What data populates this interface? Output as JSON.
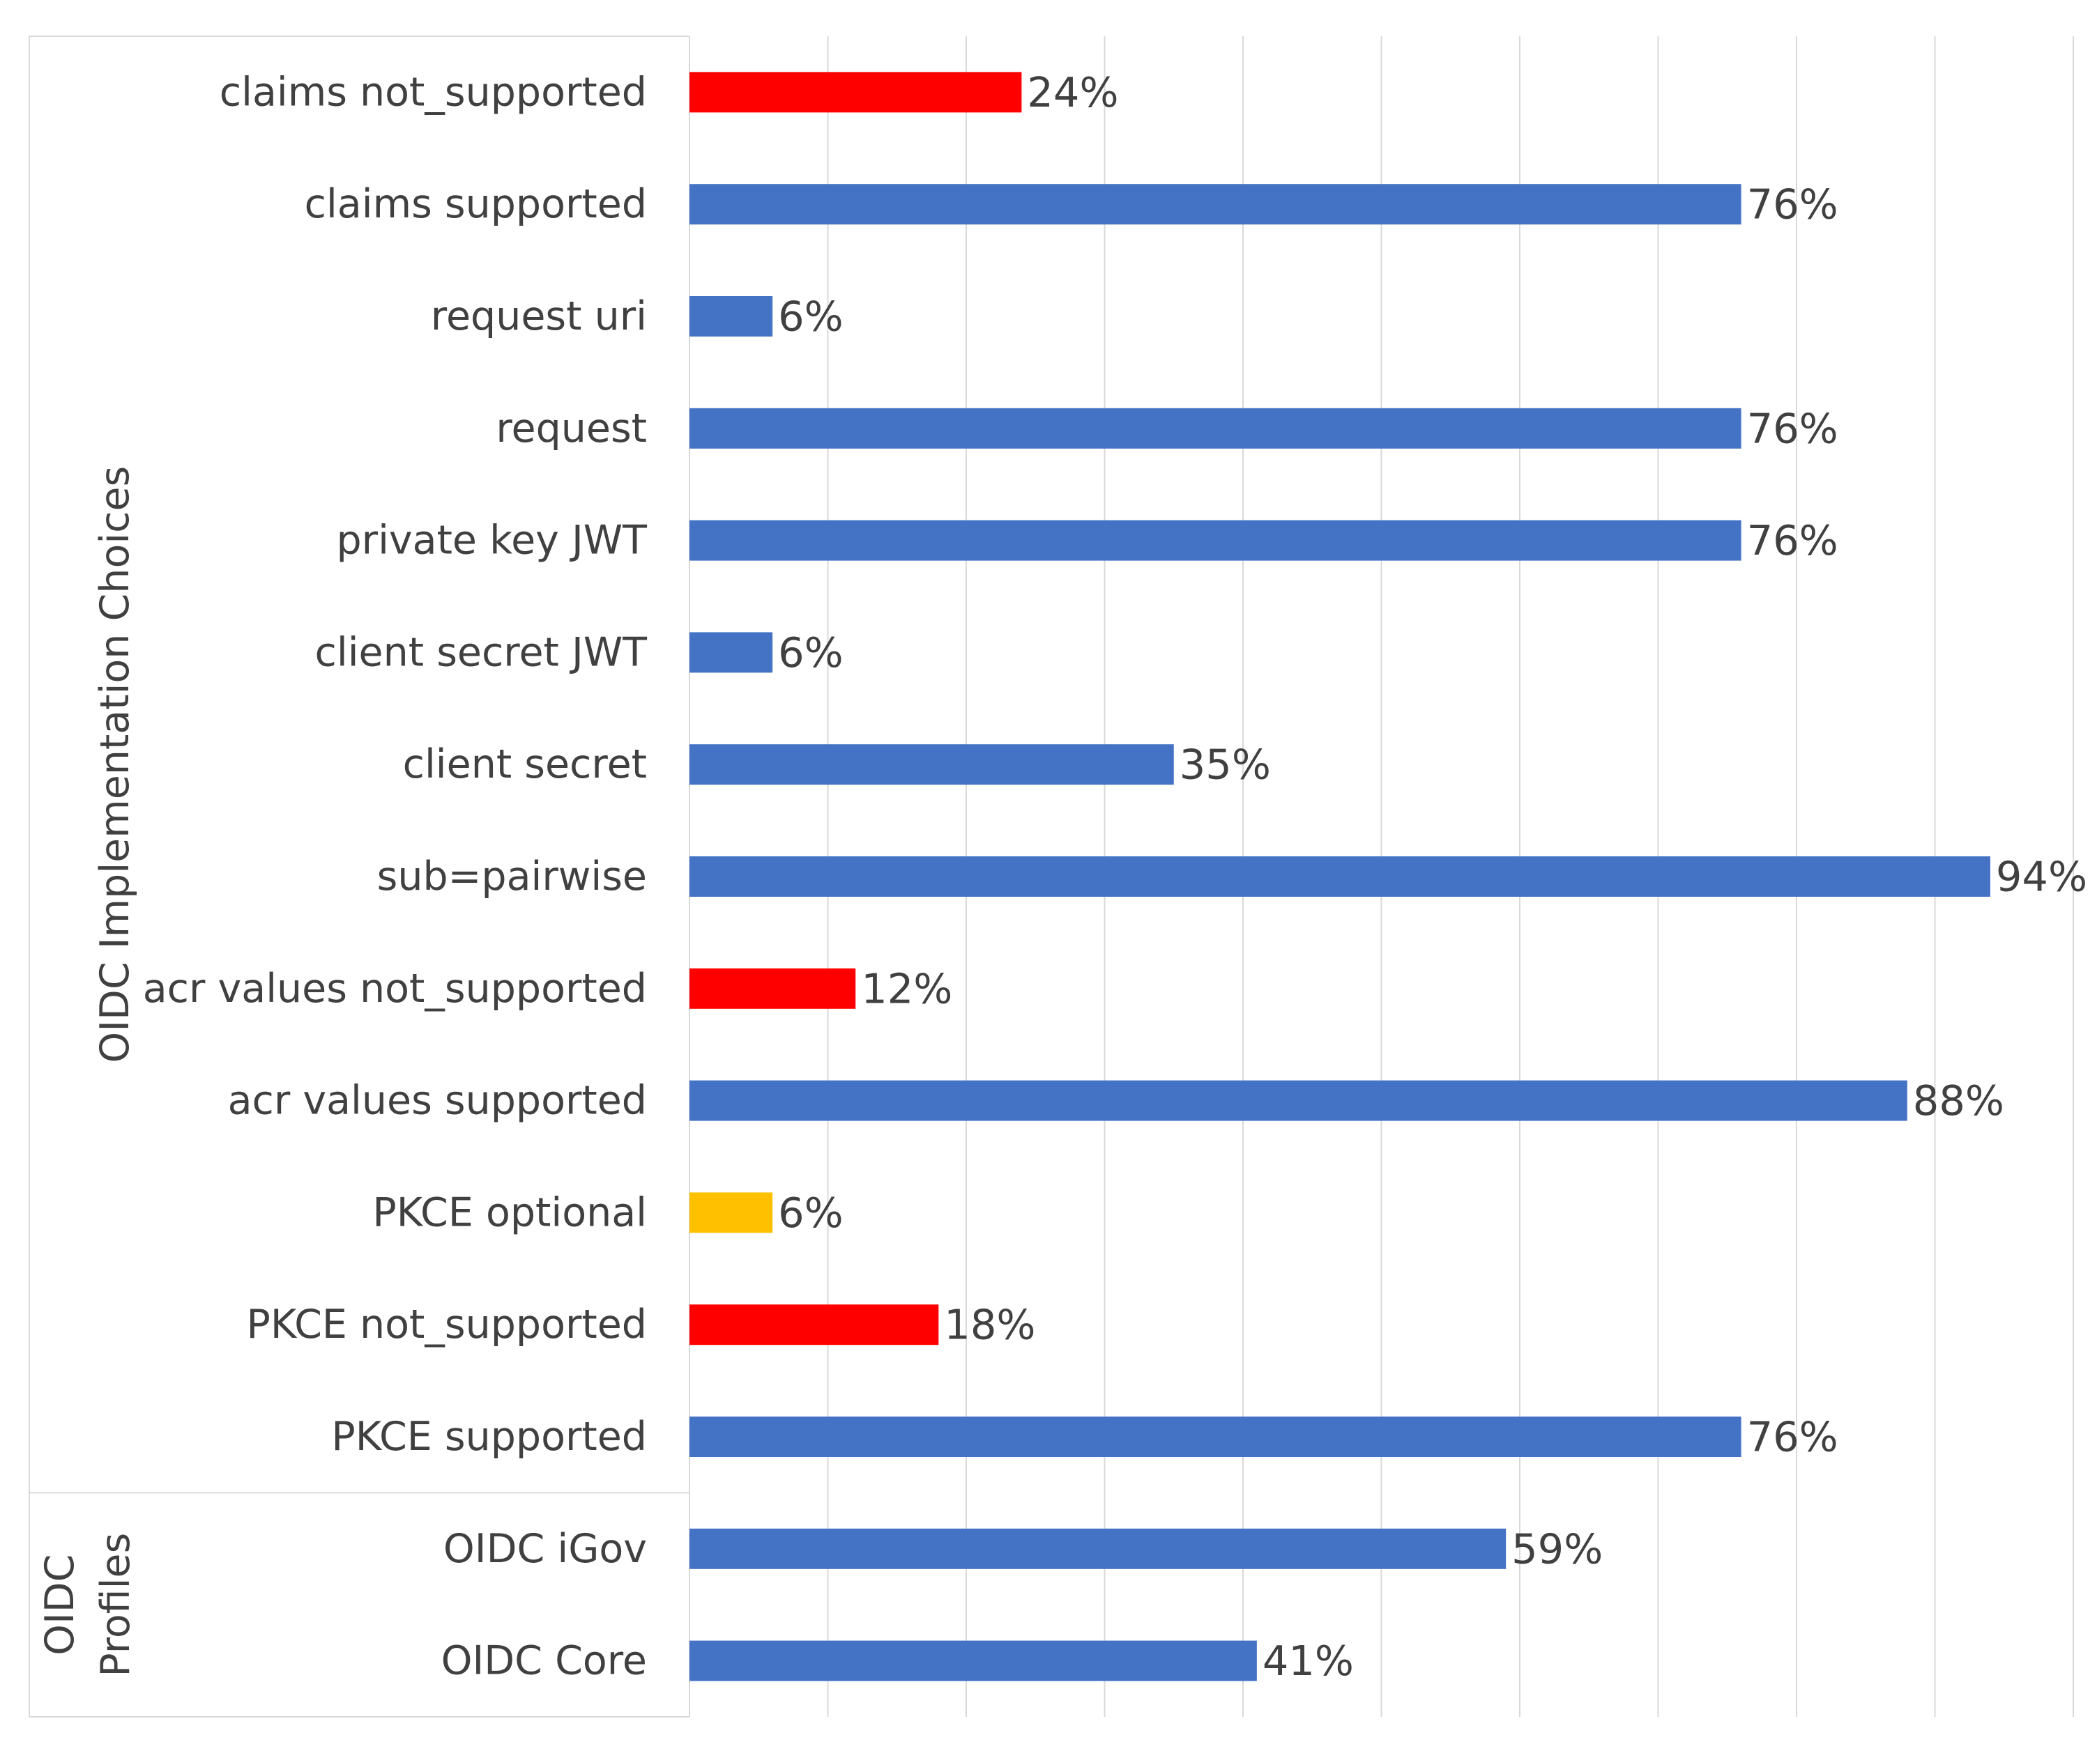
{
  "chart_data": {
    "type": "bar",
    "orientation": "horizontal",
    "title": "",
    "xlabel": "",
    "ylabel": "",
    "xlim": [
      0,
      100
    ],
    "grid": true,
    "legend": "none",
    "groups": [
      {
        "name": "OIDC Implementation Choices",
        "categories": [
          "claims not_supported",
          "claims supported",
          "request uri",
          "request",
          "private key JWT",
          "client secret JWT",
          "client secret",
          "sub=pairwise",
          "acr values not_supported",
          "acr values supported",
          "PKCE optional",
          "PKCE not_supported",
          "PKCE supported"
        ]
      },
      {
        "name": "OIDC\nProfiles",
        "name_lines": [
          "OIDC",
          "Profiles"
        ],
        "categories": [
          "OIDC iGov",
          "OIDC Core"
        ]
      }
    ],
    "categories": [
      "claims not_supported",
      "claims supported",
      "request uri",
      "request",
      "private key JWT",
      "client secret JWT",
      "client secret",
      "sub=pairwise",
      "acr values not_supported",
      "acr values supported",
      "PKCE optional",
      "PKCE not_supported",
      "PKCE supported",
      "OIDC iGov",
      "OIDC Core"
    ],
    "values": [
      24,
      76,
      6,
      76,
      76,
      6,
      35,
      94,
      12,
      88,
      6,
      18,
      76,
      59,
      41
    ],
    "value_labels": [
      "24%",
      "76%",
      "6%",
      "76%",
      "76%",
      "6%",
      "35%",
      "94%",
      "12%",
      "88%",
      "6%",
      "18%",
      "76%",
      "59%",
      "41%"
    ],
    "bar_colors": [
      "#ff0000",
      "#4472c4",
      "#4472c4",
      "#4472c4",
      "#4472c4",
      "#4472c4",
      "#4472c4",
      "#4472c4",
      "#ff0000",
      "#4472c4",
      "#ffc000",
      "#ff0000",
      "#4472c4",
      "#4472c4",
      "#4472c4"
    ]
  }
}
